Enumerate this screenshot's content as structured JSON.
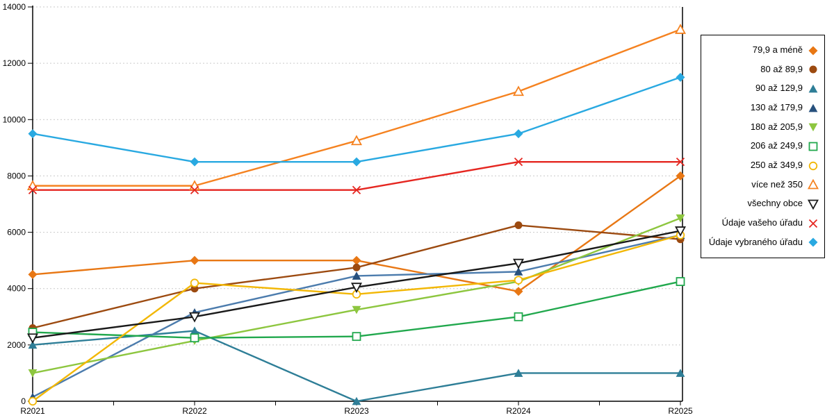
{
  "chart_data": {
    "type": "line",
    "title": "",
    "xlabel": "",
    "ylabel": "",
    "categories": [
      "R2021",
      "R2022",
      "R2023",
      "R2024",
      "R2025"
    ],
    "ylim": [
      0,
      14000
    ],
    "ytick_step": 2000,
    "yticks": [
      "0",
      "2000",
      "4000",
      "6000",
      "8000",
      "10000",
      "12000",
      "14000"
    ],
    "grid": "dashed-horizontal",
    "legend_position": "right",
    "axis_color": "#000000",
    "grid_color": "#c9c9c9",
    "series": [
      {
        "name": "79,9 a méně",
        "marker": "diamond-filled",
        "color": "#E87714",
        "values": [
          4500,
          5000,
          5000,
          3900,
          8000
        ]
      },
      {
        "name": "80 až 89,9",
        "marker": "circle-filled",
        "color": "#9C4A10",
        "values": [
          2600,
          4000,
          4750,
          6250,
          5750
        ]
      },
      {
        "name": "90 až 129,9",
        "marker": "triangle-up-filled",
        "color": "#2E7E97",
        "values": [
          2000,
          2500,
          0,
          1000,
          1000
        ]
      },
      {
        "name": "130 až 179,9",
        "marker": "triangle-up-filled",
        "color": "#4C7CAD",
        "marker_color": "#27507D",
        "values": [
          150,
          3150,
          4450,
          4600,
          5900
        ]
      },
      {
        "name": "180 až 205,9",
        "marker": "triangle-down-filled",
        "color": "#8DC63F",
        "values": [
          1000,
          2150,
          3250,
          4250,
          6500
        ]
      },
      {
        "name": "206 až 249,9",
        "marker": "square-open",
        "color": "#21A84D",
        "values": [
          2450,
          2250,
          2300,
          3000,
          4250
        ]
      },
      {
        "name": "250 až 349,9",
        "marker": "circle-open",
        "color": "#F2B705",
        "values": [
          0,
          4200,
          3800,
          4300,
          5900
        ]
      },
      {
        "name": "více než 350",
        "marker": "triangle-up-open",
        "color": "#F58220",
        "values": [
          7650,
          7650,
          9250,
          11000,
          13200
        ]
      },
      {
        "name": "všechny obce",
        "marker": "triangle-down-open",
        "color": "#1A1A1A",
        "values": [
          2250,
          3000,
          4050,
          4900,
          6050
        ]
      },
      {
        "name": "Údaje vašeho úřadu",
        "marker": "x",
        "color": "#E52620",
        "values": [
          7500,
          7500,
          7500,
          8500,
          8500
        ]
      },
      {
        "name": "Údaje vybraného úřadu",
        "marker": "diamond-filled",
        "color": "#29A9E1",
        "values": [
          9500,
          8500,
          8500,
          9500,
          11500
        ]
      }
    ]
  }
}
